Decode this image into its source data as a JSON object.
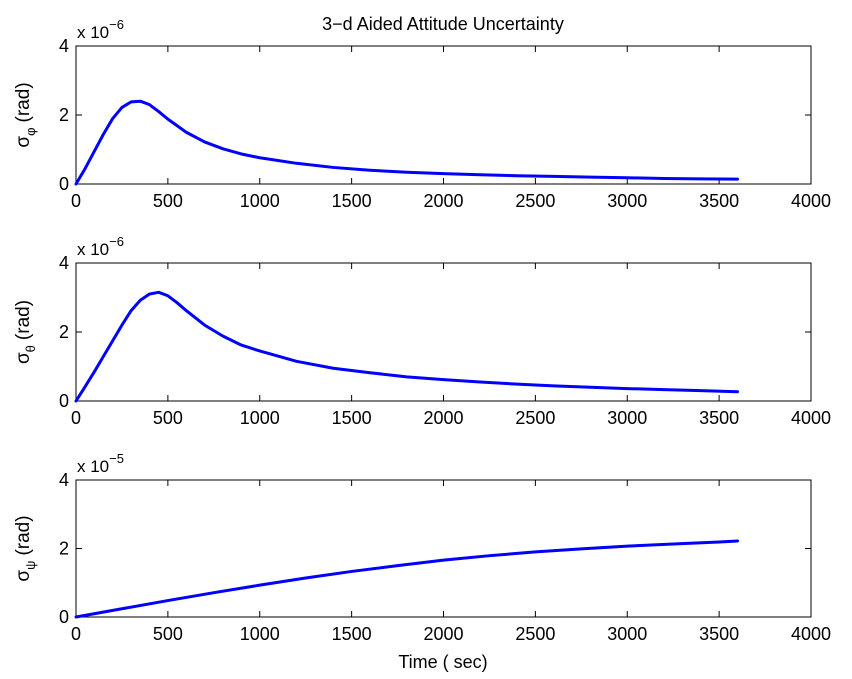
{
  "chart_data": [
    {
      "type": "line",
      "title": "3−d Aided Attitude Uncertainty",
      "ylabel_symbol": "σ",
      "ylabel_sub": "φ",
      "ylabel_unit": "(rad)",
      "exponent_prefix": "x 10",
      "exponent_power": "−6",
      "xlabel": "",
      "xlim": [
        0,
        4000
      ],
      "ylim": [
        0,
        4
      ],
      "xticks": [
        "0",
        "500",
        "1000",
        "1500",
        "2000",
        "2500",
        "3000",
        "3500",
        "4000"
      ],
      "yticks": [
        "0",
        "2",
        "4"
      ],
      "grid": false,
      "series": [
        {
          "color": "#0000ff",
          "x": [
            0,
            50,
            100,
            150,
            200,
            250,
            300,
            350,
            400,
            450,
            500,
            600,
            700,
            800,
            900,
            1000,
            1200,
            1400,
            1600,
            1800,
            2000,
            2200,
            2400,
            2600,
            2800,
            3000,
            3200,
            3400,
            3600
          ],
          "y": [
            0,
            0.45,
            0.95,
            1.45,
            1.9,
            2.22,
            2.38,
            2.4,
            2.3,
            2.1,
            1.88,
            1.5,
            1.22,
            1.02,
            0.87,
            0.76,
            0.6,
            0.48,
            0.4,
            0.34,
            0.3,
            0.27,
            0.24,
            0.22,
            0.2,
            0.18,
            0.16,
            0.15,
            0.14
          ]
        }
      ]
    },
    {
      "type": "line",
      "title": "",
      "ylabel_symbol": "σ",
      "ylabel_sub": "θ",
      "ylabel_unit": "(rad)",
      "exponent_prefix": "x 10",
      "exponent_power": "−6",
      "xlabel": "",
      "xlim": [
        0,
        4000
      ],
      "ylim": [
        0,
        4
      ],
      "xticks": [
        "0",
        "500",
        "1000",
        "1500",
        "2000",
        "2500",
        "3000",
        "3500",
        "4000"
      ],
      "yticks": [
        "0",
        "2",
        "4"
      ],
      "grid": false,
      "series": [
        {
          "color": "#0000ff",
          "x": [
            0,
            50,
            100,
            150,
            200,
            250,
            300,
            350,
            400,
            450,
            500,
            550,
            600,
            700,
            800,
            900,
            1000,
            1200,
            1400,
            1600,
            1800,
            2000,
            2200,
            2400,
            2600,
            2800,
            3000,
            3200,
            3400,
            3600
          ],
          "y": [
            0,
            0.42,
            0.85,
            1.3,
            1.75,
            2.2,
            2.62,
            2.92,
            3.1,
            3.15,
            3.05,
            2.85,
            2.62,
            2.2,
            1.88,
            1.62,
            1.45,
            1.15,
            0.95,
            0.82,
            0.7,
            0.62,
            0.55,
            0.49,
            0.44,
            0.4,
            0.36,
            0.33,
            0.3,
            0.27
          ]
        }
      ]
    },
    {
      "type": "line",
      "title": "",
      "ylabel_symbol": "σ",
      "ylabel_sub": "ψ",
      "ylabel_unit": "(rad)",
      "exponent_prefix": "x 10",
      "exponent_power": "−5",
      "xlabel": "Time ( sec)",
      "xlim": [
        0,
        4000
      ],
      "ylim": [
        0,
        4
      ],
      "xticks": [
        "0",
        "500",
        "1000",
        "1500",
        "2000",
        "2500",
        "3000",
        "3500",
        "4000"
      ],
      "yticks": [
        "0",
        "2",
        "4"
      ],
      "grid": false,
      "series": [
        {
          "color": "#0000ff",
          "x": [
            0,
            250,
            500,
            750,
            1000,
            1250,
            1500,
            1750,
            2000,
            2250,
            2500,
            2750,
            3000,
            3250,
            3500,
            3600
          ],
          "y": [
            0,
            0.24,
            0.48,
            0.71,
            0.93,
            1.14,
            1.33,
            1.5,
            1.66,
            1.79,
            1.9,
            1.99,
            2.07,
            2.13,
            2.19,
            2.22
          ]
        }
      ]
    }
  ]
}
